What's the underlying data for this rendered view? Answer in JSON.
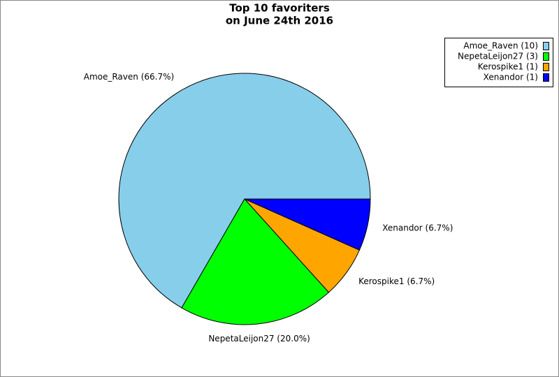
{
  "chart_data": {
    "type": "pie",
    "title": "Top 10 favoriters",
    "subtitle": "on June 24th 2016",
    "categories": [
      "Amoe_Raven",
      "NepetaLeijon27",
      "Kerospike1",
      "Xenandor"
    ],
    "values": [
      10,
      3,
      1,
      1
    ],
    "slice_labels": [
      "Amoe_Raven (66.7%)",
      "NepetaLeijon27 (20.0%)",
      "Kerospike1 (6.7%)",
      "Xenandor (6.7%)"
    ],
    "legend_labels": [
      "Amoe_Raven (10)",
      "NepetaLeijon27 (3)",
      "Kerospike1 (1)",
      "Xenandor (1)"
    ],
    "colors": [
      "#87ceeb",
      "#00ff00",
      "#ffa500",
      "#0000ff"
    ],
    "legend": "upper right"
  }
}
